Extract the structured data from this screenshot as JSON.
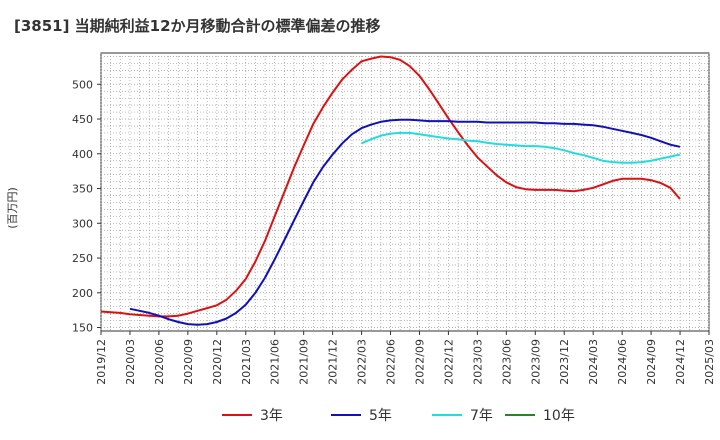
{
  "chart_data": {
    "type": "line",
    "title": "[3851]  当期純利益12か月移動合計の標準偏差の推移",
    "ylabel": "(百万円)",
    "xlabel": "",
    "ylim": [
      145,
      545
    ],
    "yticks": [
      150,
      200,
      250,
      300,
      350,
      400,
      450,
      500
    ],
    "xticks": [
      "2019/12",
      "2020/03",
      "2020/06",
      "2020/09",
      "2020/12",
      "2021/03",
      "2021/06",
      "2021/09",
      "2021/12",
      "2022/03",
      "2022/06",
      "2022/09",
      "2022/12",
      "2023/03",
      "2023/06",
      "2023/09",
      "2023/12",
      "2024/03",
      "2024/06",
      "2024/09",
      "2024/12",
      "2025/03"
    ],
    "grid": true,
    "legend_position": "bottom",
    "series": [
      {
        "name": "3年",
        "color": "#dd1111",
        "x": [
          "2019/12",
          "2020/01",
          "2020/02",
          "2020/03",
          "2020/04",
          "2020/05",
          "2020/06",
          "2020/07",
          "2020/08",
          "2020/09",
          "2020/10",
          "2020/11",
          "2020/12",
          "2021/01",
          "2021/02",
          "2021/03",
          "2021/04",
          "2021/05",
          "2021/06",
          "2021/07",
          "2021/08",
          "2021/09",
          "2021/10",
          "2021/11",
          "2021/12",
          "2022/01",
          "2022/02",
          "2022/03",
          "2022/04",
          "2022/05",
          "2022/06",
          "2022/07",
          "2022/08",
          "2022/09",
          "2022/10",
          "2022/11",
          "2022/12",
          "2023/01",
          "2023/02",
          "2023/03",
          "2023/04",
          "2023/05",
          "2023/06",
          "2023/07",
          "2023/08",
          "2023/09",
          "2023/10",
          "2023/11",
          "2023/12",
          "2024/01",
          "2024/02",
          "2024/03",
          "2024/04",
          "2024/05",
          "2024/06",
          "2024/07",
          "2024/08",
          "2024/09",
          "2024/10",
          "2024/11",
          "2024/12"
        ],
        "values": [
          173,
          172,
          171,
          169,
          168,
          167,
          166,
          166,
          167,
          170,
          174,
          178,
          182,
          190,
          203,
          220,
          245,
          275,
          310,
          345,
          380,
          412,
          443,
          467,
          488,
          507,
          521,
          533,
          537,
          540,
          539,
          535,
          526,
          512,
          493,
          472,
          451,
          431,
          412,
          395,
          382,
          369,
          359,
          352,
          349,
          348,
          348,
          348,
          347,
          346,
          348,
          351,
          356,
          361,
          364,
          364,
          364,
          362,
          358,
          351,
          335
        ]
      },
      {
        "name": "5年",
        "color": "#1111bb",
        "x": [
          "2020/03",
          "2020/04",
          "2020/05",
          "2020/06",
          "2020/07",
          "2020/08",
          "2020/09",
          "2020/10",
          "2020/11",
          "2020/12",
          "2021/01",
          "2021/02",
          "2021/03",
          "2021/04",
          "2021/05",
          "2021/06",
          "2021/07",
          "2021/08",
          "2021/09",
          "2021/10",
          "2021/11",
          "2021/12",
          "2022/01",
          "2022/02",
          "2022/03",
          "2022/04",
          "2022/05",
          "2022/06",
          "2022/07",
          "2022/08",
          "2022/09",
          "2022/10",
          "2022/11",
          "2022/12",
          "2023/01",
          "2023/02",
          "2023/03",
          "2023/04",
          "2023/05",
          "2023/06",
          "2023/07",
          "2023/08",
          "2023/09",
          "2023/10",
          "2023/11",
          "2023/12",
          "2024/01",
          "2024/02",
          "2024/03",
          "2024/04",
          "2024/05",
          "2024/06",
          "2024/07",
          "2024/08",
          "2024/09",
          "2024/10",
          "2024/11",
          "2024/12"
        ],
        "values": [
          177,
          174,
          171,
          167,
          162,
          158,
          155,
          154,
          155,
          158,
          163,
          171,
          183,
          200,
          222,
          248,
          276,
          304,
          332,
          359,
          381,
          399,
          415,
          428,
          437,
          442,
          446,
          448,
          449,
          449,
          448,
          447,
          447,
          447,
          446,
          446,
          446,
          445,
          445,
          445,
          445,
          445,
          445,
          444,
          444,
          443,
          443,
          442,
          441,
          439,
          436,
          433,
          430,
          427,
          423,
          418,
          413,
          410
        ],
        "values_end_note": ""
      },
      {
        "name": "7年",
        "color": "#22dddd",
        "x": [
          "2022/03",
          "2022/04",
          "2022/05",
          "2022/06",
          "2022/07",
          "2022/08",
          "2022/09",
          "2022/10",
          "2022/11",
          "2022/12",
          "2023/01",
          "2023/02",
          "2023/03",
          "2023/04",
          "2023/05",
          "2023/06",
          "2023/07",
          "2023/08",
          "2023/09",
          "2023/10",
          "2023/11",
          "2023/12",
          "2024/01",
          "2024/02",
          "2024/03",
          "2024/04",
          "2024/05",
          "2024/06",
          "2024/07",
          "2024/08",
          "2024/09",
          "2024/10",
          "2024/11",
          "2024/12"
        ],
        "values": [
          415,
          421,
          426,
          429,
          430,
          430,
          428,
          426,
          424,
          422,
          421,
          419,
          418,
          416,
          414,
          413,
          412,
          411,
          411,
          410,
          408,
          405,
          401,
          398,
          394,
          390,
          388,
          387,
          387,
          388,
          390,
          393,
          396,
          399
        ]
      },
      {
        "name": "10年",
        "color": "#228822",
        "x": [],
        "values": []
      }
    ]
  }
}
